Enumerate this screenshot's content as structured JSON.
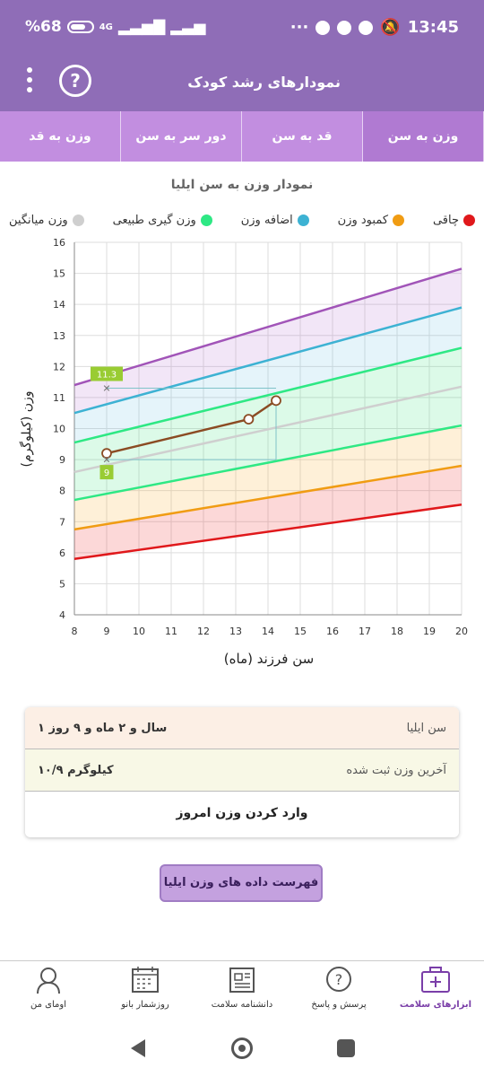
{
  "status_bar": {
    "battery": "%68",
    "network": "4G",
    "time": "13:45"
  },
  "app_bar": {
    "title": "نمودارهای رشد کودک",
    "help": "?"
  },
  "tabs": [
    {
      "label": "وزن به سن",
      "active": true
    },
    {
      "label": "قد به سن",
      "active": false
    },
    {
      "label": "دور سر به سن",
      "active": false
    },
    {
      "label": "وزن به قد",
      "active": false
    }
  ],
  "chart_title": "نمودار وزن به سن ایلیا",
  "legend": [
    {
      "label": "چاقی",
      "color": "#e0181b"
    },
    {
      "label": "کمبود وزن",
      "color": "#f09c13"
    },
    {
      "label": "اضافه وزن",
      "color": "#3db2d3"
    },
    {
      "label": "وزن گیری طبیعی",
      "color": "#2ee884"
    },
    {
      "label": "وزن میانگین",
      "color": "#cfcfcf"
    }
  ],
  "chart_data": {
    "type": "line",
    "xlabel": "سن فرزند (ماه)",
    "ylabel": "وزن (کیلوگرم)",
    "xlim": [
      8,
      20
    ],
    "ylim": [
      4,
      16
    ],
    "x_ticks": [
      8,
      9,
      10,
      11,
      12,
      13,
      14,
      15,
      16,
      17,
      18,
      19,
      20
    ],
    "y_ticks": [
      4,
      5,
      6,
      7,
      8,
      9,
      10,
      11,
      12,
      13,
      14,
      15,
      16
    ],
    "reference_curves": [
      {
        "name": "lowest",
        "color": "#e0181b",
        "x": [
          8,
          20
        ],
        "y": [
          5.8,
          7.55
        ]
      },
      {
        "name": "low",
        "color": "#f09c13",
        "x": [
          8,
          20
        ],
        "y": [
          6.75,
          8.8
        ]
      },
      {
        "name": "normal-low",
        "color": "#2ee884",
        "x": [
          8,
          20
        ],
        "y": [
          7.7,
          10.1
        ]
      },
      {
        "name": "median",
        "color": "#cfcfcf",
        "x": [
          8,
          20
        ],
        "y": [
          8.6,
          11.35
        ]
      },
      {
        "name": "normal-high",
        "color": "#2ee884",
        "x": [
          8,
          20
        ],
        "y": [
          9.55,
          12.6
        ]
      },
      {
        "name": "high",
        "color": "#3db2d3",
        "x": [
          8,
          20
        ],
        "y": [
          10.5,
          13.9
        ]
      },
      {
        "name": "highest",
        "color": "#a154b8",
        "x": [
          8,
          20
        ],
        "y": [
          11.4,
          15.15
        ]
      }
    ],
    "child_series": {
      "x": [
        9,
        13.4,
        14.25
      ],
      "y": [
        9.2,
        10.3,
        10.9
      ],
      "color": "#8b4b23"
    },
    "marker_labels": [
      {
        "x": 9,
        "y": 11.3,
        "text": "11.3"
      },
      {
        "x": 9,
        "y": 9,
        "text": "9"
      }
    ]
  },
  "info_card": {
    "age_label": "سن ایلیا",
    "age_value": "۱ سال و ۲ ماه و ۹ روز",
    "weight_label": "آخرین وزن ثبت شده",
    "weight_value": "۱۰/۹ کیلوگرم",
    "enter_weight": "وارد کردن وزن امروز"
  },
  "list_button": "فهرست داده های وزن ایلیا",
  "bottom_nav": [
    {
      "label": "ابزارهای سلامت",
      "icon": "first-aid-kit-icon",
      "active": true
    },
    {
      "label": "پرسش و پاسخ",
      "icon": "question-bubble-icon",
      "active": false
    },
    {
      "label": "دانشنامه سلامت",
      "icon": "newspaper-icon",
      "active": false
    },
    {
      "label": "روزشمار بانو",
      "icon": "calendar-icon",
      "active": false
    },
    {
      "label": "اومای من",
      "icon": "woman-avatar-icon",
      "active": false
    }
  ]
}
